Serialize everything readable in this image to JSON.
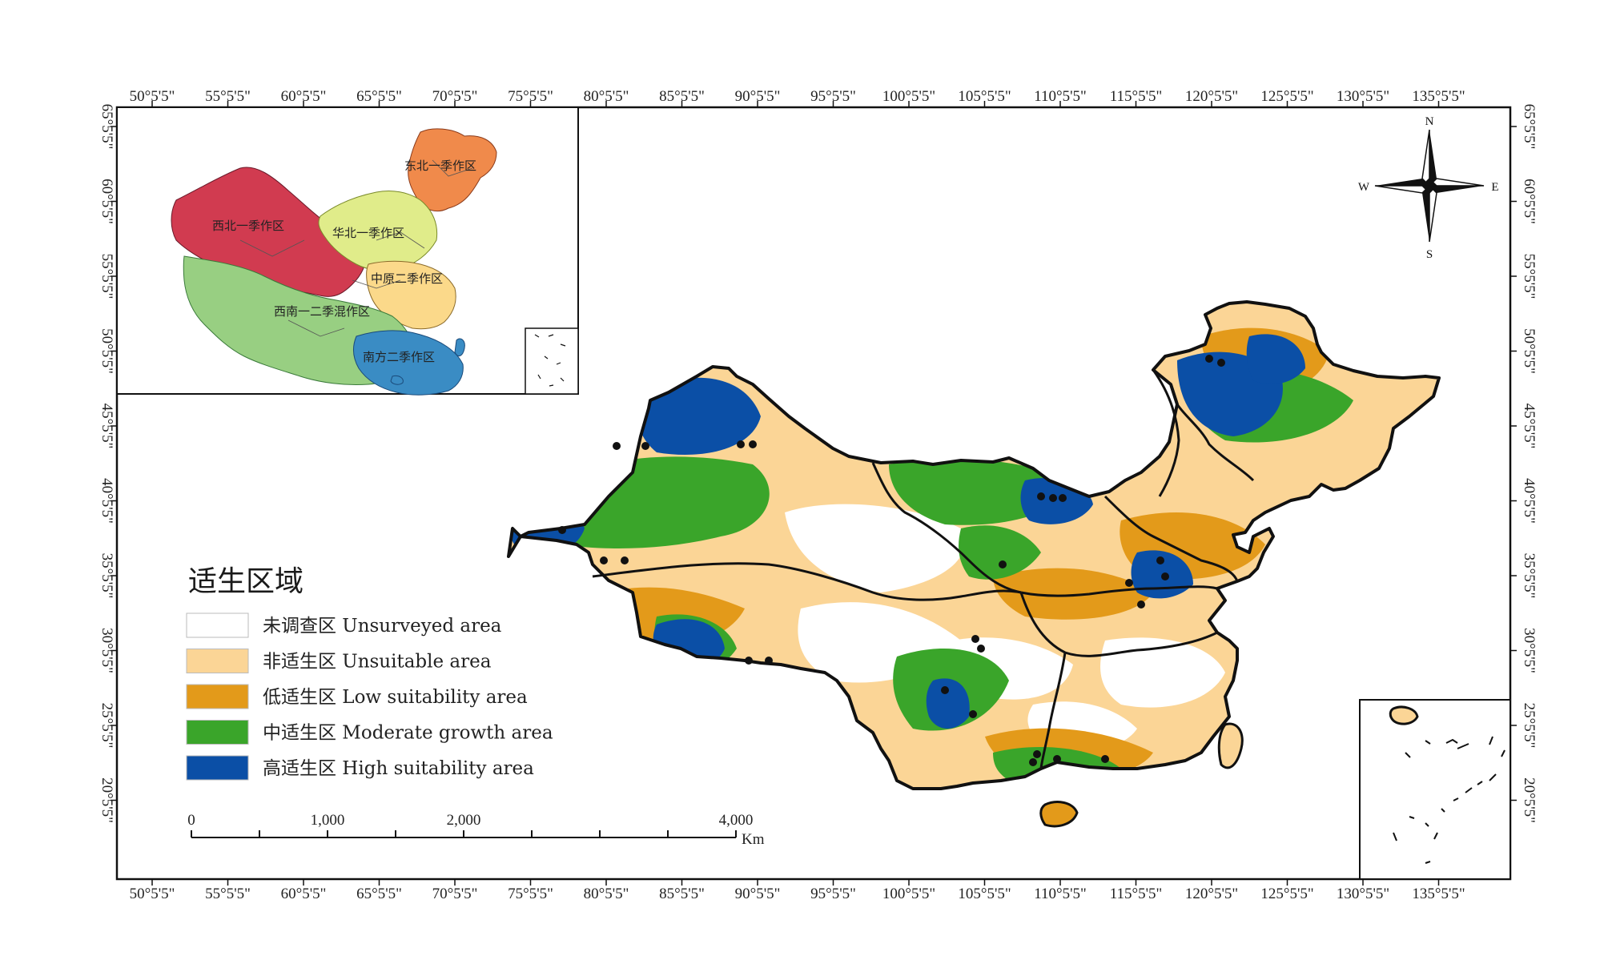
{
  "map": {
    "top_ticks": [
      "50°5'5\"",
      "55°5'5\"",
      "60°5'5\"",
      "65°5'5\"",
      "70°5'5\"",
      "75°5'5\"",
      "80°5'5\"",
      "85°5'5\"",
      "90°5'5\"",
      "95°5'5\"",
      "100°5'5\"",
      "105°5'5\"",
      "110°5'5\"",
      "115°5'5\"",
      "120°5'5\"",
      "125°5'5\"",
      "130°5'5\"",
      "135°5'5\""
    ],
    "bottom_ticks": [
      "50°5'5\"",
      "55°5'5\"",
      "60°5'5\"",
      "65°5'5\"",
      "70°5'5\"",
      "75°5'5\"",
      "80°5'5\"",
      "85°5'5\"",
      "90°5'5\"",
      "95°5'5\"",
      "100°5'5\"",
      "105°5'5\"",
      "110°5'5\"",
      "115°5'5\"",
      "120°5'5\"",
      "125°5'5\"",
      "130°5'5\"",
      "135°5'5\""
    ],
    "left_ticks": [
      "65°5'5\"",
      "60°5'5\"",
      "55°5'5\"",
      "50°5'5\"",
      "45°5'5\"",
      "40°5'5\"",
      "35°5'5\"",
      "30°5'5\"",
      "25°5'5\"",
      "20°5'5\""
    ],
    "right_ticks": [
      "65°5'5\"",
      "60°5'5\"",
      "55°5'5\"",
      "50°5'5\"",
      "45°5'5\"",
      "40°5'5\"",
      "35°5'5\"",
      "30°5'5\"",
      "25°5'5\"",
      "20°5'5\""
    ],
    "compass": {
      "n": "N",
      "s": "S",
      "e": "E",
      "w": "W"
    }
  },
  "inset": {
    "regions": [
      {
        "label": "东北一季作区",
        "color": "#f08a4b"
      },
      {
        "label": "西北一季作区",
        "color": "#d13b50"
      },
      {
        "label": "华北一季作区",
        "color": "#e0ec8a"
      },
      {
        "label": "中原二季作区",
        "color": "#fbd98a"
      },
      {
        "label": "西南一二季混作区",
        "color": "#98cf82"
      },
      {
        "label": "南方二季作区",
        "color": "#3a8cc4"
      }
    ]
  },
  "legend": {
    "title": "适生区域",
    "items": [
      {
        "label": "未调查区 Unsurveyed area",
        "color": "#ffffff"
      },
      {
        "label": "非适生区 Unsuitable area",
        "color": "#fbd596"
      },
      {
        "label": "低适生区 Low suitability area",
        "color": "#e39a1a"
      },
      {
        "label": "中适生区 Moderate growth area",
        "color": "#3aa52a"
      },
      {
        "label": "高适生区 High suitability area",
        "color": "#0b4fa6"
      }
    ]
  },
  "scale": {
    "labels": [
      "0",
      "1,000",
      "2,000",
      "4,000"
    ],
    "unit": "Km"
  },
  "colors": {
    "frame": "#111111",
    "unsurveyed": "#ffffff",
    "unsuitable": "#fbd596",
    "low": "#e39a1a",
    "moderate": "#3aa52a",
    "high": "#0b4fa6"
  }
}
